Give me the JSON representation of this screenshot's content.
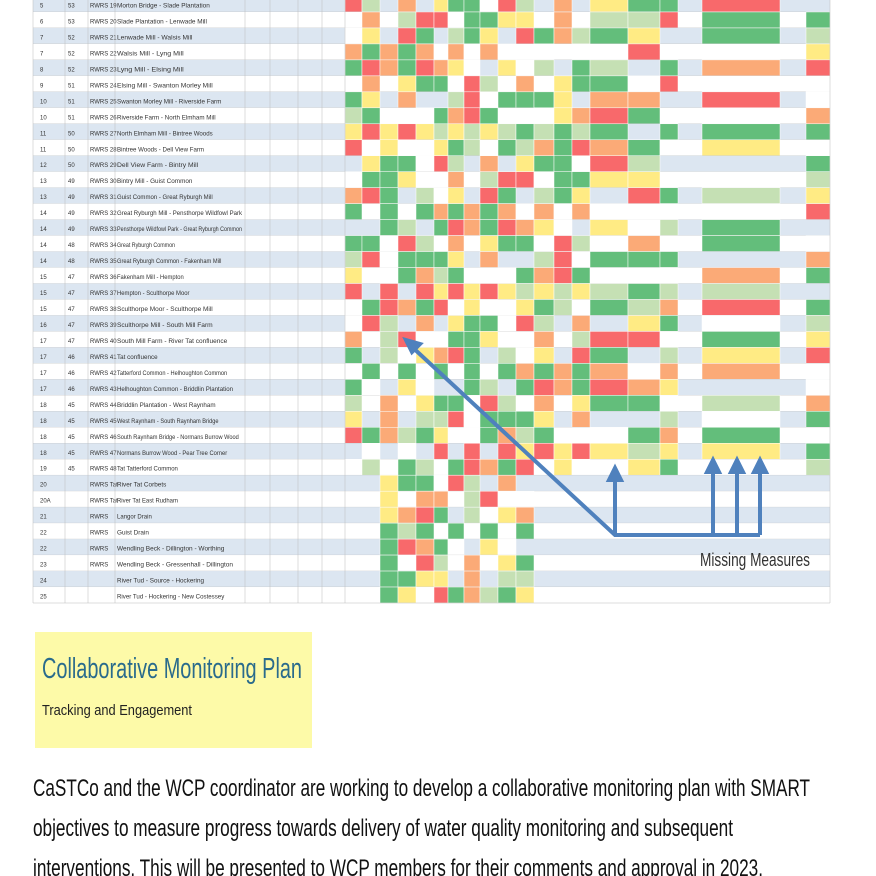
{
  "table": {
    "rows": [
      [
        "5",
        "53",
        "RWRS 19",
        "Morton Bridge - Slade Plantation"
      ],
      [
        "6",
        "53",
        "RWRS 20",
        "Slade Plantation - Lenwade Mill"
      ],
      [
        "7",
        "52",
        "RWRS 21",
        "Lenwade Mill - Walsis Mill"
      ],
      [
        "7",
        "52",
        "RWRS 22",
        "Walsis Mill - Lyng Mill"
      ],
      [
        "8",
        "52",
        "RWRS 23",
        "Lyng Mill - Elsing Mill"
      ],
      [
        "9",
        "51",
        "RWRS 24",
        "Elsing Mill - Swanton Morley Mill"
      ],
      [
        "10",
        "51",
        "RWRS 25",
        "Swanton Morley Mill - Riverside Farm"
      ],
      [
        "10",
        "51",
        "RWRS 26",
        "Riverside Farm - North Elmham Mill"
      ],
      [
        "11",
        "50",
        "RWRS 27",
        "North Elmham Mill - Bintree Woods"
      ],
      [
        "11",
        "50",
        "RWRS 28",
        "Bintree Woods - Dell View Farm"
      ],
      [
        "12",
        "50",
        "RWRS 29",
        "Dell View Farm - Bintry Mill"
      ],
      [
        "13",
        "49",
        "RWRS 30",
        "Bintry Mill - Guist Common"
      ],
      [
        "13",
        "49",
        "RWRS 31",
        "Guist Common - Great Ryburgh Mill"
      ],
      [
        "14",
        "49",
        "RWRS 32",
        "Great Ryburgh Mill - Pensthorpe Wildfowl Park"
      ],
      [
        "14",
        "49",
        "RWRS 33",
        "Pensthorpe Wildfowl Park - Great Ryburgh Common"
      ],
      [
        "14",
        "48",
        "RWRS 34",
        "Great Ryburgh Common"
      ],
      [
        "14",
        "48",
        "RWRS 35",
        "Great Ryburgh Common - Fakenham Mill"
      ],
      [
        "15",
        "47",
        "RWRS 36",
        "Fakenham Mill - Hempton"
      ],
      [
        "15",
        "47",
        "RWRS 37",
        "Hempton - Sculthorpe Moor"
      ],
      [
        "15",
        "47",
        "RWRS 38",
        "Sculthorpe Moor - Sculthorpe Mill"
      ],
      [
        "16",
        "47",
        "RWRS 39",
        "Sculthorpe Mill - South Mill Farm"
      ],
      [
        "17",
        "47",
        "RWRS 40",
        "South Mill Farm - River Tat confluence"
      ],
      [
        "17",
        "46",
        "RWRS 41",
        "Tat confluence"
      ],
      [
        "17",
        "46",
        "RWRS 42",
        "Tatterford Common - Helhoughton Common"
      ],
      [
        "17",
        "46",
        "RWRS 43",
        "Helhoughton Common - Briddlin Plantation"
      ],
      [
        "18",
        "45",
        "RWRS 44",
        "Briddlin Plantation - West Raynham"
      ],
      [
        "18",
        "45",
        "RWRS 45",
        "West Raynham - South Raynham Bridge"
      ],
      [
        "18",
        "45",
        "RWRS 46",
        "South Raynham Bridge - Normans Burrow Wood"
      ],
      [
        "18",
        "45",
        "RWRS 47",
        "Normans Burrow Wood - Pear Tree Corner"
      ],
      [
        "19",
        "45",
        "RWRS 48",
        "Tat Tatterford Common"
      ],
      [
        "20",
        "",
        "RWRS Tat",
        "River Tat Corbets"
      ],
      [
        "20A",
        "",
        "RWRS Tat",
        "River Tat East Rudham"
      ],
      [
        "21",
        "",
        "RWRS",
        "Langor Drain"
      ],
      [
        "22",
        "",
        "RWRS",
        "Guist Drain"
      ],
      [
        "22",
        "",
        "RWRS",
        "Wendling Beck - Dillington - Worthing"
      ],
      [
        "23",
        "",
        "RWRS",
        "Wendling Beck - Gressenhall - Dillington"
      ],
      [
        "24",
        "",
        "",
        "River Tud - Source - Hockering"
      ],
      [
        "25",
        "",
        "",
        "River Tud - Hockering - New Costessey"
      ]
    ]
  },
  "annotation": "Missing Measures",
  "box": {
    "title": "Collaborative Monitoring Plan",
    "subtitle": "Tracking and Engagement"
  },
  "body": [
    "CaSTCo and the WCP coordinator are working to develop a collaborative monitoring plan with SMART",
    "objectives to measure progress towards delivery of water quality monitoring and subsequent",
    "interventions.  This will be presented to WCP members for their comments and approval in 2023."
  ]
}
